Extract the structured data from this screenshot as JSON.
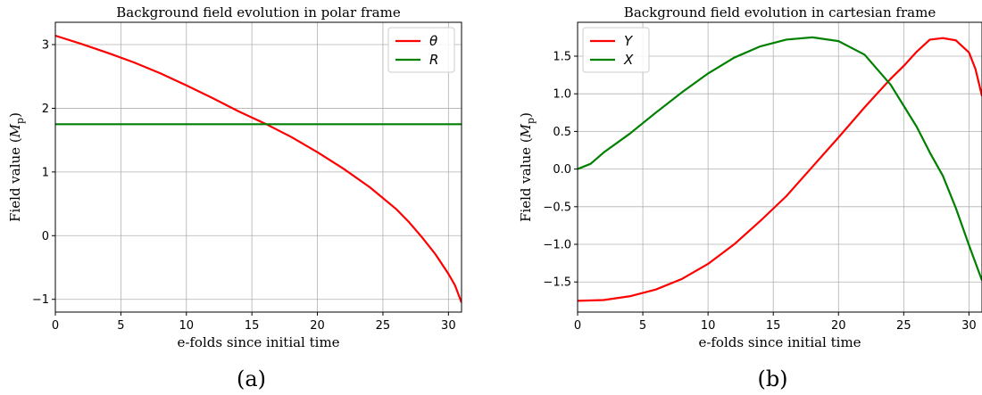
{
  "chart_data": [
    {
      "type": "line",
      "title": "Background field evolution in polar frame",
      "xlabel": "e-folds since initial time",
      "ylabel": "Field value (M_p)",
      "ylabel_main": "Field value (",
      "ylabel_symbol": "M",
      "ylabel_subscript": "p",
      "ylabel_close": ")",
      "caption": "(a)",
      "xlim": [
        0,
        31
      ],
      "ylim": [
        -1.2,
        3.35
      ],
      "xticks": [
        0,
        5,
        10,
        15,
        20,
        25,
        30
      ],
      "yticks": [
        -1,
        0,
        1,
        2,
        3
      ],
      "xtick_labels": [
        "0",
        "5",
        "10",
        "15",
        "20",
        "25",
        "30"
      ],
      "ytick_labels": [
        "−1",
        "0",
        "1",
        "2",
        "3"
      ],
      "grid": true,
      "legend_position": "top-right",
      "series": [
        {
          "name": "θ",
          "color": "#ff0000",
          "x": [
            0,
            2,
            4,
            6,
            8,
            10,
            12,
            14,
            16,
            18,
            20,
            22,
            24,
            26,
            27,
            28,
            29,
            30,
            30.5,
            31
          ],
          "y": [
            3.14,
            3.01,
            2.87,
            2.72,
            2.55,
            2.36,
            2.16,
            1.95,
            1.76,
            1.55,
            1.31,
            1.05,
            0.76,
            0.42,
            0.21,
            -0.03,
            -0.29,
            -0.6,
            -0.78,
            -1.05
          ]
        },
        {
          "name": "R",
          "color": "#008000",
          "x": [
            0,
            31
          ],
          "y": [
            1.75,
            1.75
          ]
        }
      ]
    },
    {
      "type": "line",
      "title": "Background field evolution in cartesian frame",
      "xlabel": "e-folds since initial time",
      "ylabel": "Field value (M_p)",
      "ylabel_main": "Field value (",
      "ylabel_symbol": "M",
      "ylabel_subscript": "p",
      "ylabel_close": ")",
      "caption": "(b)",
      "xlim": [
        0,
        31
      ],
      "ylim": [
        -1.9,
        1.95
      ],
      "xticks": [
        0,
        5,
        10,
        15,
        20,
        25,
        30
      ],
      "yticks": [
        -1.5,
        -1.0,
        -0.5,
        0.0,
        0.5,
        1.0,
        1.5
      ],
      "xtick_labels": [
        "0",
        "5",
        "10",
        "15",
        "20",
        "25",
        "30"
      ],
      "ytick_labels": [
        "−1.5",
        "−1.0",
        "−0.5",
        "0.0",
        "0.5",
        "1.0",
        "1.5"
      ],
      "grid": true,
      "legend_position": "top-left",
      "series": [
        {
          "name": "Y",
          "color": "#ff0000",
          "x": [
            0,
            2,
            4,
            6,
            8,
            10,
            12,
            14,
            16,
            18,
            20,
            22,
            24,
            25,
            26,
            27,
            28,
            29,
            30,
            30.5,
            31
          ],
          "y": [
            -1.75,
            -1.74,
            -1.69,
            -1.6,
            -1.46,
            -1.26,
            -1.0,
            -0.69,
            -0.36,
            0.03,
            0.42,
            0.82,
            1.2,
            1.37,
            1.56,
            1.72,
            1.74,
            1.71,
            1.55,
            1.33,
            0.97
          ]
        },
        {
          "name": "X",
          "color": "#008000",
          "x": [
            0,
            1,
            2,
            4,
            6,
            8,
            10,
            12,
            14,
            16,
            18,
            20,
            22,
            24,
            26,
            27,
            28,
            29,
            30,
            31
          ],
          "y": [
            0.0,
            0.07,
            0.22,
            0.47,
            0.75,
            1.02,
            1.27,
            1.48,
            1.63,
            1.72,
            1.75,
            1.7,
            1.52,
            1.12,
            0.56,
            0.22,
            -0.09,
            -0.52,
            -1.01,
            -1.48
          ]
        }
      ]
    }
  ]
}
